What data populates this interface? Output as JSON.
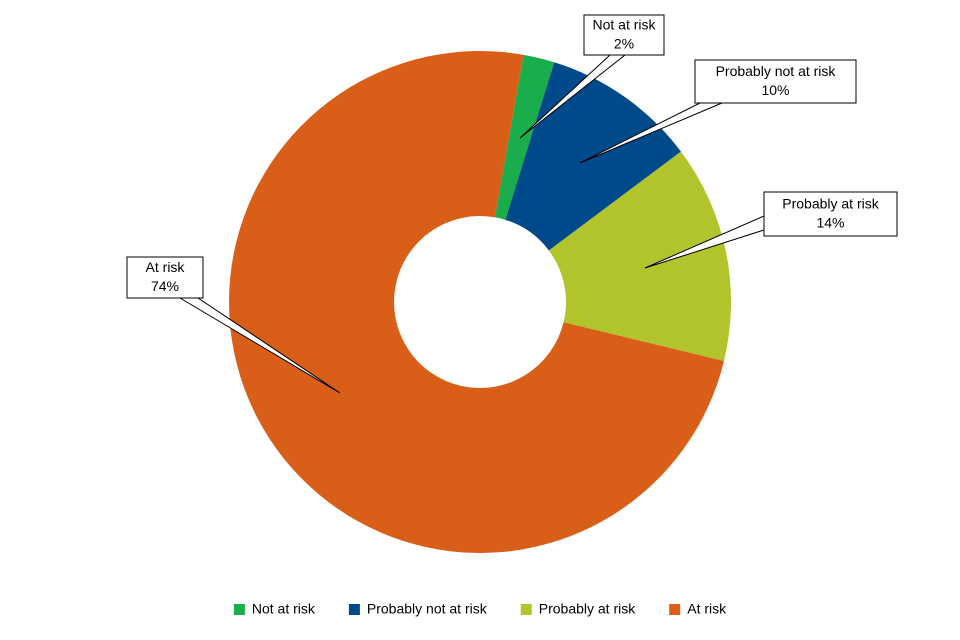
{
  "chart_data": {
    "type": "donut",
    "categories": [
      "Not at risk",
      "Probably not at risk",
      "Probably at risk",
      "At risk"
    ],
    "values": [
      2,
      10,
      14,
      74
    ],
    "value_labels": [
      "2%",
      "10%",
      "14%",
      "74%"
    ],
    "colors": [
      "#1aad4b",
      "#004a8b",
      "#b2c42b",
      "#d95f18"
    ],
    "legend": "bottom"
  }
}
